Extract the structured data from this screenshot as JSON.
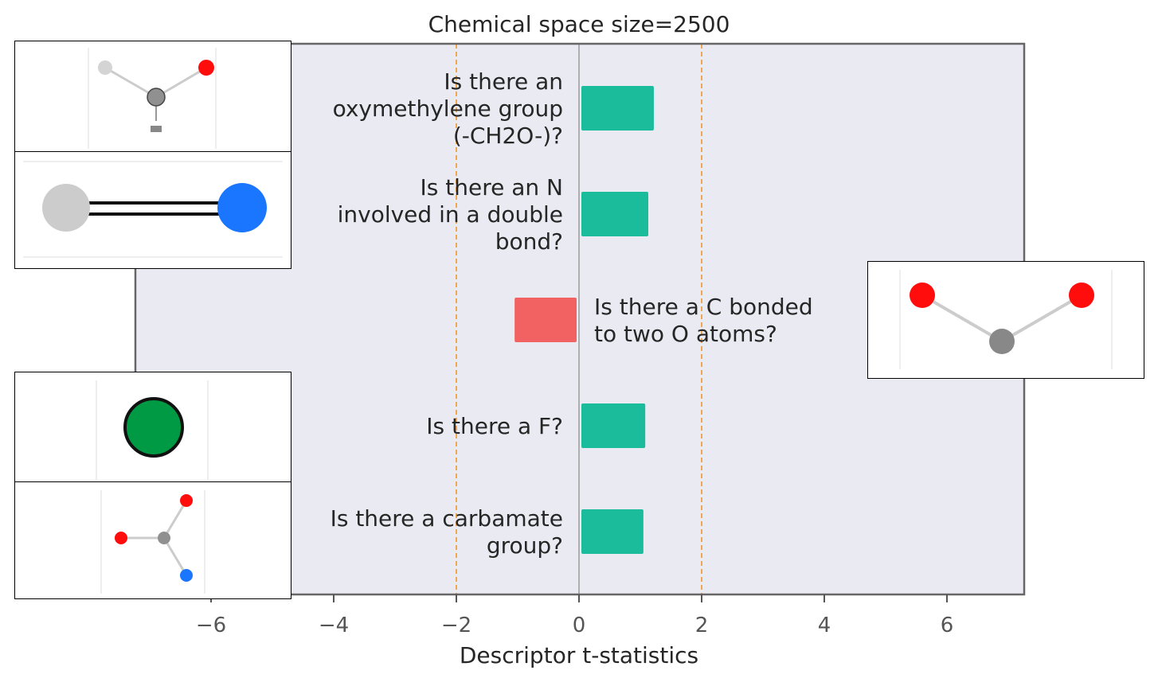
{
  "chart_data": {
    "type": "bar",
    "orientation": "horizontal",
    "title": "Chemical space size=2500",
    "xlabel": "Descriptor t-statistics",
    "xlim": [
      -7.2,
      7.2
    ],
    "xticks": [
      -6,
      -4,
      -2,
      0,
      2,
      4,
      6
    ],
    "xtick_labels": [
      "−6",
      "−4",
      "−2",
      "0",
      "2",
      "4",
      "6"
    ],
    "significance_lines": [
      -2,
      2
    ],
    "grid": false,
    "categories": [
      {
        "label_lines": [
          "Is there an",
          "oxymethylene group",
          "(-CH2O-)?"
        ],
        "value": 1.22,
        "color": "#1abc9c",
        "image": "oxymethylene-molecule-icon"
      },
      {
        "label_lines": [
          "Is there an N",
          "involved in a double",
          "bond?"
        ],
        "value": 1.13,
        "color": "#1abc9c",
        "image": "n-double-bond-molecule-icon"
      },
      {
        "label_lines": [
          "Is there a C bonded",
          "to two O atoms?"
        ],
        "value": -1.05,
        "color": "#f26262",
        "image": "carbon-two-oxygen-molecule-icon"
      },
      {
        "label_lines": [
          "Is there a F?"
        ],
        "value": 1.08,
        "color": "#1abc9c",
        "image": "fluorine-atom-icon"
      },
      {
        "label_lines": [
          "Is there a carbamate",
          "group?"
        ],
        "value": 1.05,
        "color": "#1abc9c",
        "image": "carbamate-molecule-icon"
      }
    ],
    "colors": {
      "positive": "#1abc9c",
      "negative": "#f26262",
      "plot_background": "#eaeaf2",
      "significance_line": "#f0a040",
      "zero_line": "#888888",
      "frame": "#666666"
    }
  }
}
